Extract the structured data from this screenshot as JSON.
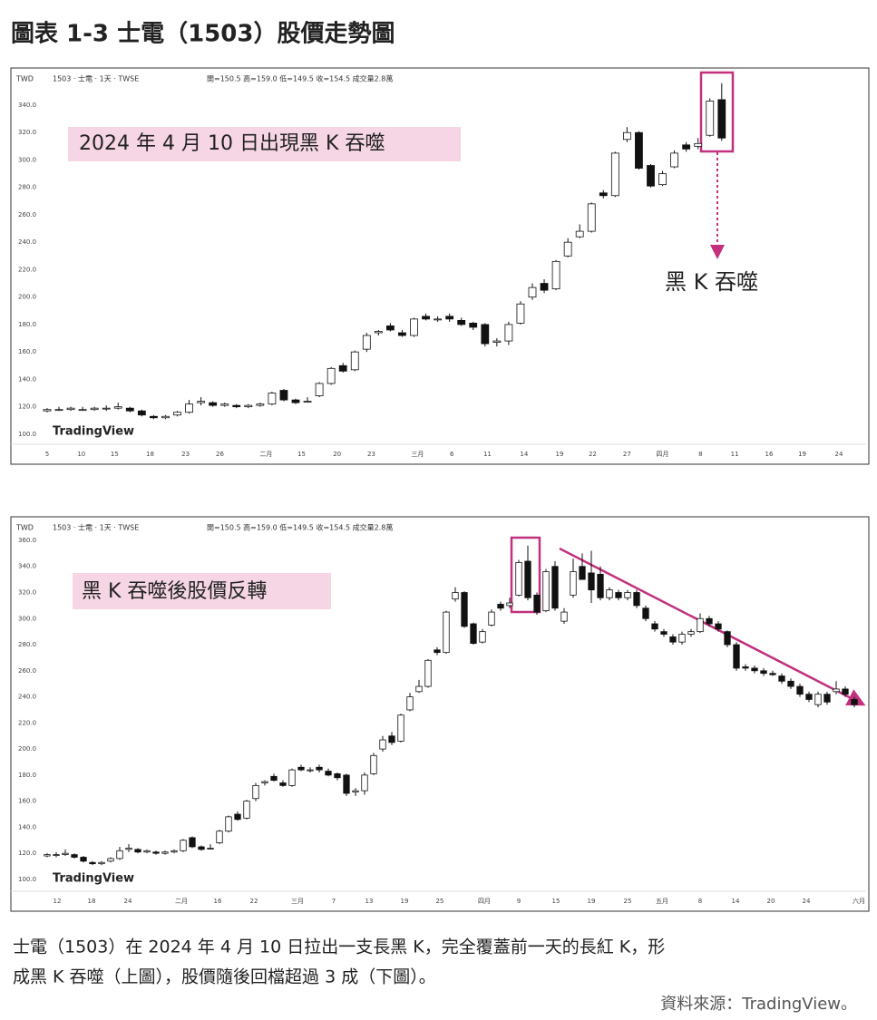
{
  "header": {
    "title": "圖表 1-3 士電（1503）股價走勢圖"
  },
  "caption": [
    "士電（1503）在 2024 年 4 月 10 日拉出一支長黑 K，完全覆蓋前一天的長紅 K，形",
    "成黑 K 吞噬（上圖），股價隨後回檔超過 3 成（下圖）。"
  ],
  "source": "資料來源：TradingView。",
  "chart_data": [
    {
      "type": "candlestick",
      "currency": "TWD",
      "symbol": "1503 · 士電 · 1天 · TWSE",
      "ohlc_label": "開=150.5 高=159.0 低=149.5 收=154.5 成交量2.8萬",
      "annotation": "2024 年 4 月 10 日出現黑 K 吞噬",
      "callout": "黑 K 吞噬",
      "watermark": "TradingView",
      "up_color": "#ffffff",
      "down_color": "#111111",
      "ylim": [
        92,
        362
      ],
      "yticks": [
        {
          "value": 100,
          "label": "100.0"
        },
        {
          "value": 120,
          "label": "120.0"
        },
        {
          "value": 140,
          "label": "140.0"
        },
        {
          "value": 160,
          "label": "160.0"
        },
        {
          "value": 180,
          "label": "180.0"
        },
        {
          "value": 200,
          "label": "200.0"
        },
        {
          "value": 220,
          "label": "220.0"
        },
        {
          "value": 240,
          "label": "240.0"
        },
        {
          "value": 260,
          "label": "260.0"
        },
        {
          "value": 280,
          "label": "280.0"
        },
        {
          "value": 300,
          "label": "300.0"
        },
        {
          "value": 320,
          "label": "320.0"
        },
        {
          "value": 340,
          "label": "340.0"
        }
      ],
      "xlim": [
        -0.15,
        69.2
      ],
      "xticks": [
        {
          "value": 0,
          "label": "5"
        },
        {
          "value": 2.9,
          "label": "10"
        },
        {
          "value": 5.7,
          "label": "15"
        },
        {
          "value": 8.7,
          "label": "18"
        },
        {
          "value": 11.7,
          "label": "23"
        },
        {
          "value": 14.6,
          "label": "26"
        },
        {
          "value": 18.5,
          "label": "二月"
        },
        {
          "value": 21.5,
          "label": "15"
        },
        {
          "value": 24.5,
          "label": "20"
        },
        {
          "value": 27.4,
          "label": "23"
        },
        {
          "value": 31.3,
          "label": "三月"
        },
        {
          "value": 34.2,
          "label": "6"
        },
        {
          "value": 37.2,
          "label": "11"
        },
        {
          "value": 40.3,
          "label": "14"
        },
        {
          "value": 43.3,
          "label": "19"
        },
        {
          "value": 46.1,
          "label": "22"
        },
        {
          "value": 49,
          "label": "27"
        },
        {
          "value": 52,
          "label": "四月"
        },
        {
          "value": 55.2,
          "label": "8"
        },
        {
          "value": 58.1,
          "label": "11"
        },
        {
          "value": 61,
          "label": "16"
        },
        {
          "value": 63.8,
          "label": "19"
        },
        {
          "value": 66.9,
          "label": "24"
        }
      ],
      "open": [
        117,
        118,
        118,
        118,
        118,
        119,
        119,
        119,
        117,
        113,
        112,
        114,
        116,
        123,
        123,
        121,
        121,
        120,
        121,
        122,
        132,
        125,
        124,
        128,
        137,
        150,
        147,
        162,
        174,
        179,
        174,
        172,
        186,
        184,
        186,
        183,
        181,
        180,
        167,
        168,
        181,
        200,
        210,
        206,
        230,
        244,
        248,
        276,
        274,
        315,
        320,
        296,
        282,
        295,
        311,
        310,
        318,
        344
      ],
      "high": [
        119,
        120,
        120,
        120,
        120,
        121,
        123,
        120,
        118,
        114,
        114,
        117,
        125,
        127,
        124,
        123,
        122,
        122,
        123,
        131,
        133,
        126,
        127,
        138,
        149,
        152,
        161,
        174,
        176,
        181,
        176,
        185,
        188,
        186,
        188,
        185,
        182,
        181,
        170,
        182,
        197,
        210,
        213,
        227,
        243,
        253,
        269,
        278,
        306,
        324,
        321,
        297,
        292,
        307,
        313,
        316,
        345,
        356
      ],
      "low": [
        116,
        117,
        117,
        117,
        117,
        117,
        118,
        116,
        113,
        111,
        111,
        113,
        115,
        121,
        120,
        120,
        119,
        119,
        120,
        121,
        124,
        122,
        123,
        127,
        136,
        145,
        146,
        160,
        172,
        175,
        171,
        171,
        183,
        182,
        182,
        179,
        176,
        164,
        164,
        165,
        180,
        198,
        203,
        205,
        229,
        243,
        247,
        272,
        273,
        313,
        293,
        280,
        281,
        294,
        306,
        308,
        317,
        314
      ],
      "close": [
        118,
        118,
        119,
        118,
        119,
        119,
        120,
        117,
        114,
        112,
        113,
        116,
        122,
        124,
        121,
        122,
        120,
        121,
        122,
        130,
        125,
        123,
        124,
        137,
        148,
        146,
        160,
        172,
        175,
        176,
        172,
        184,
        184,
        184,
        184,
        180,
        178,
        166,
        168,
        180,
        195,
        207,
        205,
        226,
        240,
        248,
        268,
        274,
        305,
        320,
        294,
        281,
        290,
        305,
        308,
        312,
        343,
        316
      ]
    },
    {
      "type": "candlestick",
      "currency": "TWD",
      "symbol": "1503 · 士電 · 1天 · TWSE",
      "ohlc_label": "開=150.5 高=159.0 低=149.5 收=154.5 成交量2.8萬",
      "annotation": "黑 K 吞噬後股價反轉",
      "watermark": "TradingView",
      "up_color": "#ffffff",
      "down_color": "#111111",
      "ylim": [
        93,
        367
      ],
      "yticks": [
        {
          "value": 100,
          "label": "100.0"
        },
        {
          "value": 120,
          "label": "120.0"
        },
        {
          "value": 140,
          "label": "140.0"
        },
        {
          "value": 160,
          "label": "160.0"
        },
        {
          "value": 180,
          "label": "180.0"
        },
        {
          "value": 200,
          "label": "200.0"
        },
        {
          "value": 220,
          "label": "220.0"
        },
        {
          "value": 240,
          "label": "240.0"
        },
        {
          "value": 260,
          "label": "260.0"
        },
        {
          "value": 280,
          "label": "280.0"
        },
        {
          "value": 300,
          "label": "300.0"
        },
        {
          "value": 320,
          "label": "320.0"
        },
        {
          "value": 340,
          "label": "340.0"
        },
        {
          "value": 360,
          "label": "360.0"
        }
      ],
      "xlim": [
        -0.2,
        90.3
      ],
      "xticks": [
        {
          "value": 1.1,
          "label": "12"
        },
        {
          "value": 4.9,
          "label": "18"
        },
        {
          "value": 8.9,
          "label": "24"
        },
        {
          "value": 14.8,
          "label": "二月"
        },
        {
          "value": 18.8,
          "label": "16"
        },
        {
          "value": 22.8,
          "label": "22"
        },
        {
          "value": 27.6,
          "label": "三月"
        },
        {
          "value": 31.6,
          "label": "7"
        },
        {
          "value": 35.5,
          "label": "13"
        },
        {
          "value": 39.4,
          "label": "19"
        },
        {
          "value": 43.3,
          "label": "25"
        },
        {
          "value": 48.2,
          "label": "四月"
        },
        {
          "value": 52,
          "label": "9"
        },
        {
          "value": 56.1,
          "label": "15"
        },
        {
          "value": 60,
          "label": "19"
        },
        {
          "value": 64,
          "label": "25"
        },
        {
          "value": 67.8,
          "label": "五月"
        },
        {
          "value": 72,
          "label": "8"
        },
        {
          "value": 75.9,
          "label": "14"
        },
        {
          "value": 79.8,
          "label": "20"
        },
        {
          "value": 83.7,
          "label": "24"
        },
        {
          "value": 89.5,
          "label": "六月"
        }
      ],
      "open": [
        118,
        119,
        119,
        119,
        117,
        113,
        112,
        114,
        116,
        123,
        123,
        121,
        121,
        120,
        121,
        122,
        132,
        125,
        124,
        128,
        137,
        150,
        147,
        162,
        174,
        179,
        174,
        172,
        186,
        184,
        186,
        183,
        181,
        180,
        167,
        168,
        181,
        200,
        210,
        206,
        230,
        244,
        248,
        276,
        274,
        315,
        320,
        296,
        282,
        295,
        311,
        310,
        318,
        344,
        318,
        306,
        340,
        298,
        318,
        340,
        335,
        334,
        316,
        320,
        316,
        320,
        308,
        296,
        290,
        286,
        282,
        288,
        290,
        300,
        296,
        290,
        280,
        263,
        262,
        260,
        258,
        256,
        252,
        248,
        242,
        234,
        242,
        244,
        246,
        238
      ],
      "high": [
        120,
        121,
        123,
        120,
        118,
        114,
        114,
        117,
        125,
        127,
        124,
        123,
        122,
        122,
        123,
        131,
        133,
        126,
        127,
        138,
        149,
        152,
        161,
        174,
        176,
        181,
        176,
        185,
        188,
        186,
        188,
        185,
        182,
        181,
        170,
        182,
        197,
        210,
        213,
        227,
        243,
        253,
        269,
        278,
        306,
        324,
        321,
        297,
        292,
        307,
        313,
        316,
        345,
        356,
        320,
        338,
        344,
        308,
        346,
        350,
        352,
        340,
        324,
        322,
        322,
        322,
        310,
        298,
        292,
        288,
        290,
        292,
        304,
        302,
        298,
        291,
        282,
        265,
        264,
        262,
        260,
        258,
        254,
        250,
        244,
        244,
        244,
        252,
        248,
        240
      ],
      "low": [
        117,
        117,
        118,
        116,
        113,
        111,
        111,
        113,
        115,
        121,
        120,
        120,
        119,
        119,
        120,
        121,
        124,
        122,
        123,
        127,
        136,
        145,
        146,
        160,
        172,
        175,
        171,
        171,
        183,
        182,
        182,
        179,
        176,
        164,
        164,
        165,
        180,
        198,
        203,
        205,
        229,
        243,
        247,
        272,
        273,
        313,
        293,
        280,
        281,
        294,
        306,
        308,
        317,
        314,
        303,
        305,
        306,
        296,
        316,
        330,
        312,
        314,
        314,
        314,
        314,
        308,
        298,
        290,
        286,
        280,
        280,
        286,
        289,
        294,
        290,
        278,
        260,
        260,
        258,
        256,
        256,
        250,
        246,
        240,
        236,
        232,
        234,
        242,
        240,
        232
      ],
      "close": [
        119,
        119,
        120,
        117,
        114,
        112,
        113,
        116,
        122,
        124,
        121,
        122,
        120,
        121,
        122,
        130,
        125,
        123,
        124,
        137,
        148,
        146,
        160,
        172,
        175,
        176,
        172,
        184,
        184,
        184,
        184,
        180,
        178,
        166,
        168,
        180,
        195,
        207,
        205,
        226,
        240,
        248,
        268,
        274,
        305,
        320,
        294,
        281,
        290,
        305,
        308,
        312,
        343,
        316,
        305,
        336,
        308,
        305,
        336,
        330,
        322,
        316,
        322,
        316,
        320,
        310,
        300,
        292,
        288,
        282,
        288,
        290,
        300,
        296,
        292,
        280,
        262,
        262,
        260,
        258,
        257,
        252,
        248,
        242,
        238,
        242,
        236,
        246,
        242,
        234
      ]
    }
  ]
}
